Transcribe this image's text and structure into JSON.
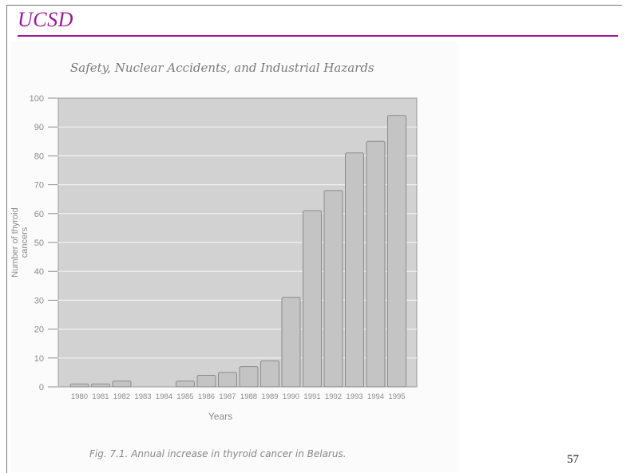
{
  "header": {
    "title": "UCSD"
  },
  "page": {
    "chapter_title": "Safety, Nuclear Accidents, and Industrial Hazards",
    "caption": "Fig. 7.1. Annual increase in thyroid cancer in Belarus.",
    "page_number": "57"
  },
  "colors": {
    "accent": "#a0169a",
    "plot_background": "#d2d2d2",
    "bar_fill": "#c4c4c4",
    "bar_stroke": "#8a8a8a",
    "axis_text": "#8c8c8c"
  },
  "chart_data": {
    "type": "bar",
    "title": "",
    "xlabel": "Years",
    "ylabel": "Number of thyroid cancers",
    "ylabel_lines": [
      "Number of thyroid",
      "cancers"
    ],
    "ylim": [
      0,
      100
    ],
    "yticks": [
      0,
      10,
      20,
      30,
      40,
      50,
      60,
      70,
      80,
      90,
      100
    ],
    "grid": true,
    "categories": [
      "1980",
      "1981",
      "1982",
      "1983",
      "1984",
      "1985",
      "1986",
      "1987",
      "1988",
      "1989",
      "1990",
      "1991",
      "1992",
      "1993",
      "1994",
      "1995"
    ],
    "values": [
      1,
      1,
      2,
      0,
      0,
      2,
      4,
      5,
      7,
      9,
      31,
      61,
      68,
      81,
      85,
      94
    ]
  }
}
